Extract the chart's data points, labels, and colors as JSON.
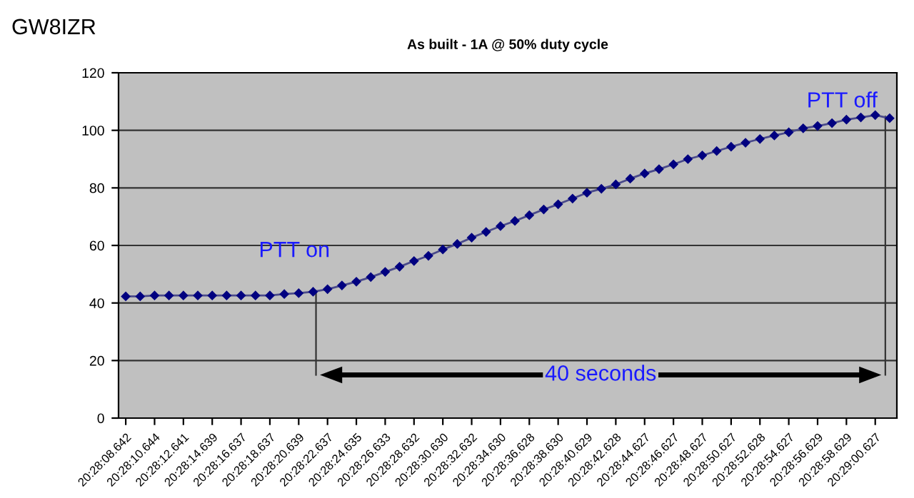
{
  "chart_data": {
    "type": "line",
    "title": "As built - 1A @ 50% duty cycle",
    "categories": [
      "20:28:08.642",
      null,
      "20:28:10.644",
      null,
      "20:28:12.641",
      null,
      "20:28:14.639",
      null,
      "20:28:16.637",
      null,
      "20:28:18.637",
      null,
      "20:28:20.639",
      null,
      "20:28:22.637",
      null,
      "20:28:24.635",
      null,
      "20:28:26.633",
      null,
      "20:28:28.632",
      null,
      "20:28:30.630",
      null,
      "20:28:32.632",
      null,
      "20:28:34.630",
      null,
      "20:28:36.628",
      null,
      "20:28:38.630",
      null,
      "20:28:40.629",
      null,
      "20:28:42.628",
      null,
      "20:28:44.627",
      null,
      "20:28:46.627",
      null,
      "20:28:48.627",
      null,
      "20:28:50.627",
      null,
      "20:28:52.628",
      null,
      "20:28:54.627",
      null,
      "20:28:56.629",
      null,
      "20:28:58.629",
      null,
      "20:29:00.627",
      null
    ],
    "series": [
      {
        "color": "#000080",
        "values": [
          42.3,
          42.3,
          42.6,
          42.6,
          42.6,
          42.6,
          42.6,
          42.6,
          42.6,
          42.6,
          42.6,
          43.1,
          43.4,
          43.9,
          44.8,
          46.1,
          47.4,
          49.0,
          50.8,
          52.6,
          54.6,
          56.4,
          58.6,
          60.5,
          62.7,
          64.7,
          66.7,
          68.5,
          70.5,
          72.5,
          74.3,
          76.3,
          78.3,
          79.7,
          81.2,
          83.2,
          85.0,
          86.5,
          88.2,
          90.0,
          91.3,
          92.8,
          94.3,
          95.7,
          97.0,
          98.2,
          99.3,
          100.7,
          101.5,
          102.5,
          103.7,
          104.5,
          105.3,
          104.2
        ]
      }
    ],
    "ylim": [
      0,
      120
    ],
    "yticks": [
      0,
      20,
      40,
      60,
      80,
      100,
      120
    ],
    "grid": "y",
    "marker": "diamond",
    "line_style": "solid",
    "annotations": [
      "GW8IZR",
      "PTT on",
      "PTT off",
      "40 seconds"
    ]
  }
}
